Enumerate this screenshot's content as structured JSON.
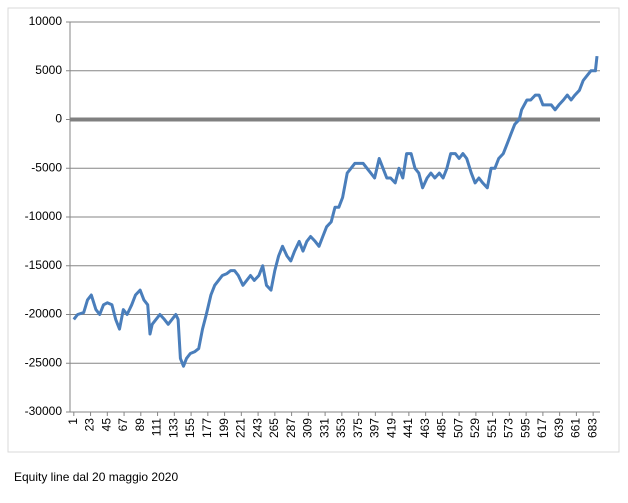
{
  "chart_data": {
    "type": "line",
    "caption": "Equity line  dal 20 maggio 2020",
    "color": "#4a7ebb",
    "grid": true,
    "xlim": [
      -4,
      692
    ],
    "xticks": [
      1,
      23,
      45,
      67,
      89,
      111,
      133,
      155,
      177,
      199,
      221,
      243,
      265,
      287,
      309,
      331,
      353,
      375,
      397,
      419,
      441,
      463,
      485,
      507,
      529,
      551,
      573,
      595,
      617,
      639,
      661,
      683
    ],
    "ylim": [
      -30000,
      10000
    ],
    "yticks": [
      10000,
      5000,
      0,
      -5000,
      -10000,
      -15000,
      -20000,
      -25000,
      -30000
    ],
    "x": [
      1,
      6,
      14,
      19,
      24,
      30,
      35,
      40,
      45,
      51,
      56,
      61,
      66,
      71,
      77,
      82,
      88,
      93,
      98,
      101,
      104,
      109,
      114,
      120,
      125,
      130,
      135,
      138,
      141,
      145,
      149,
      154,
      160,
      165,
      170,
      175,
      181,
      186,
      191,
      196,
      202,
      207,
      212,
      217,
      223,
      228,
      233,
      238,
      244,
      249,
      254,
      260,
      265,
      270,
      275,
      281,
      286,
      291,
      297,
      302,
      307,
      312,
      318,
      323,
      328,
      333,
      339,
      344,
      349,
      354,
      360,
      365,
      370,
      376,
      381,
      386,
      391,
      396,
      402,
      407,
      412,
      417,
      423,
      428,
      433,
      438,
      444,
      449,
      454,
      459,
      465,
      470,
      475,
      481,
      486,
      491,
      496,
      502,
      507,
      512,
      517,
      523,
      528,
      533,
      538,
      544,
      549,
      554,
      559,
      565,
      570,
      575,
      580,
      586,
      589,
      596,
      601,
      607,
      612,
      617,
      623,
      628,
      633,
      638,
      644,
      649,
      654,
      659,
      665,
      670,
      675,
      680,
      686,
      688
    ],
    "values": [
      -20500,
      -20000,
      -19800,
      -18500,
      -18000,
      -19500,
      -20000,
      -19000,
      -18800,
      -19000,
      -20500,
      -21500,
      -19500,
      -20000,
      -19000,
      -18000,
      -17500,
      -18500,
      -19000,
      -22000,
      -21000,
      -20500,
      -20000,
      -20500,
      -21000,
      -20500,
      -20000,
      -20500,
      -24500,
      -25300,
      -24500,
      -24000,
      -23800,
      -23500,
      -21500,
      -20000,
      -18000,
      -17000,
      -16500,
      -16000,
      -15800,
      -15500,
      -15500,
      -16000,
      -17000,
      -16500,
      -16000,
      -16500,
      -16000,
      -15000,
      -17000,
      -17500,
      -15500,
      -14000,
      -13000,
      -14000,
      -14500,
      -13500,
      -12500,
      -13500,
      -12500,
      -12000,
      -12500,
      -13000,
      -12000,
      -11000,
      -10500,
      -9000,
      -9000,
      -8000,
      -5500,
      -5000,
      -4500,
      -4500,
      -4500,
      -5000,
      -5500,
      -6000,
      -4000,
      -5000,
      -6000,
      -6000,
      -6500,
      -5000,
      -6000,
      -3500,
      -3500,
      -5000,
      -5500,
      -7000,
      -6000,
      -5500,
      -6000,
      -5500,
      -6000,
      -5000,
      -3500,
      -3500,
      -4000,
      -3500,
      -4000,
      -5500,
      -6500,
      -6000,
      -6500,
      -7000,
      -5000,
      -5000,
      -4000,
      -3500,
      -2500,
      -1500,
      -500,
      0,
      1000,
      2000,
      2000,
      2500,
      2500,
      1500,
      1500,
      1500,
      1000,
      1500,
      2000,
      2500,
      2000,
      2500,
      3000,
      4000,
      4500,
      5000,
      5000,
      6500
    ]
  }
}
